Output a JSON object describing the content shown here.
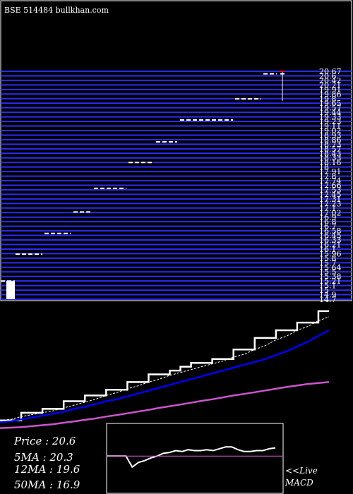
{
  "header": {
    "title": "BSE 514484  bullkhan.com"
  },
  "price_scale": {
    "labels": [
      "20.67",
      "20.6",
      "20.42",
      "20.21",
      "19.91",
      "19.86",
      "19.8",
      "19.65",
      "19.57",
      "19.44",
      "19.33",
      "19.23",
      "19.11",
      "19.02",
      "18.93",
      "18.86",
      "18.73",
      "18.57",
      "18.43",
      "18.33",
      "18.16",
      "18",
      "17.91",
      "17.8",
      "17.74",
      "17.66",
      "17.53",
      "17.45",
      "17.31",
      "17.23",
      "17.1",
      "17.02",
      "16.9",
      "16.8",
      "16.7",
      "16.58",
      "16.45",
      "16.33",
      "16.21",
      "16.1",
      "15.96",
      "15.8",
      "15.7",
      "15.64",
      "15.5",
      "15.38",
      "15.21",
      "15.1",
      "15",
      "14.9",
      "14.7"
    ]
  },
  "chart_data": [
    {
      "type": "price-steps",
      "ymax": 20.67,
      "ymin": 14.4,
      "candles": [
        {
          "x0": 1,
          "x1": 21,
          "close": 14.9,
          "low": 14.4
        },
        {
          "x0": 22,
          "x1": 60,
          "close": 15.64
        },
        {
          "x0": 63,
          "x1": 100,
          "close": 16.21
        },
        {
          "x0": 104,
          "x1": 130,
          "close": 16.8
        },
        {
          "x0": 133,
          "x1": 179,
          "close": 17.45
        },
        {
          "x0": 182,
          "x1": 218,
          "close": 18.16
        },
        {
          "x0": 221,
          "x1": 251,
          "close": 18.73
        },
        {
          "x0": 255,
          "x1": 330,
          "close": 19.33
        },
        {
          "x0": 333,
          "x1": 370,
          "close": 19.91
        },
        {
          "x0": 373,
          "x1": 392,
          "close": 20.6
        },
        {
          "x0": 397,
          "x1": 403,
          "close": 20.6,
          "low": 19.86,
          "high": 20.67,
          "accent": "#ff0000"
        }
      ],
      "colors": {
        "gridline": "#2b2bff",
        "price": "#ffffff",
        "wick": "#ffffff"
      }
    },
    {
      "type": "line",
      "series": [
        {
          "name": "Price",
          "color": "#ffffff",
          "values": [
            14.9,
            14.9,
            15.3,
            15.3,
            15.5,
            15.5,
            15.9,
            15.9,
            16.2,
            16.2,
            16.5,
            16.5,
            16.9,
            16.9,
            17.3,
            17.3,
            17.5,
            17.7,
            17.9,
            17.9,
            18.1,
            18.1,
            18.6,
            18.6,
            19.2,
            19.2,
            19.6,
            19.6,
            20.0,
            20.0,
            20.6,
            20.6
          ]
        },
        {
          "name": "5MA",
          "color": "#ffffff",
          "dashed": true,
          "values": [
            14.9,
            14.95,
            15.1,
            15.2,
            15.3,
            15.4,
            15.55,
            15.7,
            15.85,
            16.0,
            16.2,
            16.35,
            16.55,
            16.7,
            16.9,
            17.05,
            17.25,
            17.4,
            17.55,
            17.7,
            17.85,
            18.0,
            18.2,
            18.35,
            18.6,
            18.8,
            19.1,
            19.3,
            19.6,
            19.8,
            20.1,
            20.3
          ]
        },
        {
          "name": "12MA",
          "color": "#0000ff",
          "values": [
            14.8,
            14.85,
            14.95,
            15.05,
            15.15,
            15.25,
            15.35,
            15.5,
            15.6,
            15.75,
            15.9,
            16.0,
            16.15,
            16.3,
            16.45,
            16.6,
            16.75,
            16.9,
            17.05,
            17.2,
            17.35,
            17.5,
            17.65,
            17.8,
            17.95,
            18.1,
            18.3,
            18.5,
            18.75,
            19.0,
            19.3,
            19.6
          ]
        },
        {
          "name": "50MA",
          "color": "#cc55cc",
          "values": [
            14.5,
            14.52,
            14.55,
            14.6,
            14.65,
            14.7,
            14.78,
            14.85,
            14.93,
            15.0,
            15.1,
            15.18,
            15.27,
            15.36,
            15.45,
            15.55,
            15.64,
            15.73,
            15.82,
            15.92,
            16.0,
            16.1,
            16.2,
            16.28,
            16.37,
            16.46,
            16.55,
            16.64,
            16.72,
            16.8,
            16.85,
            16.9
          ]
        }
      ],
      "ylim": [
        14.3,
        21.0
      ]
    },
    {
      "type": "line",
      "title": "MACD",
      "series": [
        {
          "name": "MACD",
          "color": "#ffffff",
          "values": [
            0.0,
            0.0,
            0.0,
            0.0,
            -0.12,
            -0.07,
            -0.05,
            -0.02,
            0.0,
            0.03,
            0.04,
            0.06,
            0.05,
            0.07,
            0.06,
            0.06,
            0.07,
            0.06,
            0.08,
            0.1,
            0.1,
            0.07,
            0.05,
            0.05,
            0.06,
            0.06,
            0.08,
            0.09
          ]
        },
        {
          "name": "Signal",
          "color": "#cc55cc",
          "values": [
            0.0,
            0.0,
            0.0,
            0.0,
            0.0,
            0.0,
            0.0,
            0.0,
            0.0,
            0.0,
            0.0,
            0.0,
            0.0,
            0.0,
            0.0,
            0.0,
            0.0,
            0.0,
            0.0,
            0.0,
            0.0,
            0.0,
            0.0,
            0.0,
            0.0,
            0.0,
            0.0,
            0.0
          ]
        }
      ],
      "ylim": [
        -0.4,
        0.35
      ]
    }
  ],
  "legend": {
    "price": "Price   : 20.6",
    "ma5": "5MA : 20.3",
    "ma12": "12MA : 19.6",
    "ma50": "50MA : 16.9"
  },
  "macd_panel": {
    "live_label": "<<Live",
    "macd_label": "MACD"
  }
}
